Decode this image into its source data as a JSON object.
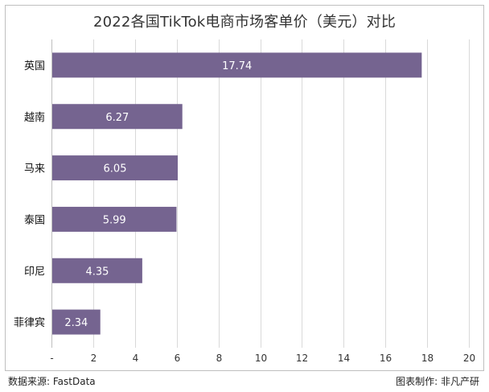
{
  "chart_data": {
    "type": "bar",
    "orientation": "horizontal",
    "title": "2022各国TikTok电商市场客单价（美元）对比",
    "categories": [
      "英国",
      "越南",
      "马来",
      "泰国",
      "印尼",
      "菲律宾"
    ],
    "values": [
      17.74,
      6.27,
      6.05,
      5.99,
      4.35,
      2.34
    ],
    "value_labels": [
      "17.74",
      "6.27",
      "6.05",
      "5.99",
      "4.35",
      "2.34"
    ],
    "xlim": [
      0,
      20
    ],
    "x_ticks": [
      0,
      2,
      4,
      6,
      8,
      10,
      12,
      14,
      16,
      18,
      20
    ],
    "x_tick_labels": [
      "-",
      "2",
      "4",
      "6",
      "8",
      "10",
      "12",
      "14",
      "16",
      "18",
      "20"
    ],
    "xlabel": "",
    "ylabel": "",
    "grid": true,
    "bar_color": "#756490"
  },
  "footer": {
    "source": "数据来源: FastData",
    "credit": "图表制作: 非凡产研"
  }
}
